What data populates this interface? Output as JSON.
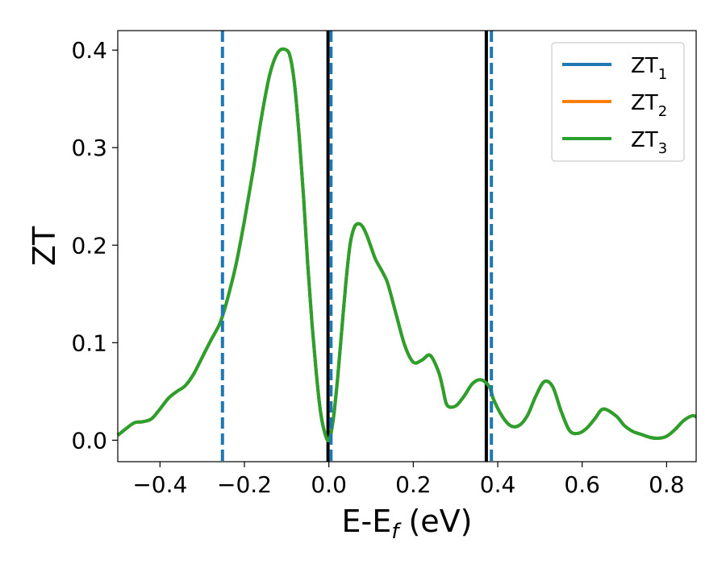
{
  "chart_data": {
    "type": "line",
    "xlabel": {
      "base": "E-E",
      "sub": "f",
      "suffix": " (eV)"
    },
    "ylabel": "ZT",
    "xlim": [
      -0.5,
      0.87
    ],
    "ylim": [
      -0.022,
      0.42
    ],
    "x_ticks": [
      -0.4,
      -0.2,
      0.0,
      0.2,
      0.4,
      0.6,
      0.8
    ],
    "x_tick_labels": [
      "−0.4",
      "−0.2",
      "0.0",
      "0.2",
      "0.4",
      "0.6",
      "0.8"
    ],
    "y_ticks": [
      0.0,
      0.1,
      0.2,
      0.3,
      0.4
    ],
    "y_tick_labels": [
      "0.0",
      "0.1",
      "0.2",
      "0.3",
      "0.4"
    ],
    "grid": false,
    "legend_position": "top-right",
    "series": [
      {
        "name": "ZT",
        "sub": "1",
        "color": "#1f77b4"
      },
      {
        "name": "ZT",
        "sub": "2",
        "color": "#ff7f0e"
      },
      {
        "name": "ZT",
        "sub": "3",
        "color": "#2ca02c"
      }
    ],
    "curve": {
      "x": [
        -0.5,
        -0.48,
        -0.46,
        -0.44,
        -0.42,
        -0.4,
        -0.38,
        -0.36,
        -0.34,
        -0.32,
        -0.3,
        -0.28,
        -0.26,
        -0.25,
        -0.24,
        -0.22,
        -0.2,
        -0.18,
        -0.16,
        -0.14,
        -0.12,
        -0.1,
        -0.09,
        -0.08,
        -0.07,
        -0.06,
        -0.05,
        -0.04,
        -0.03,
        -0.02,
        -0.01,
        0.0,
        0.01,
        0.02,
        0.03,
        0.04,
        0.05,
        0.06,
        0.07,
        0.08,
        0.09,
        0.1,
        0.11,
        0.12,
        0.13,
        0.14,
        0.16,
        0.18,
        0.2,
        0.22,
        0.24,
        0.26,
        0.27,
        0.28,
        0.3,
        0.32,
        0.34,
        0.36,
        0.38,
        0.39,
        0.41,
        0.43,
        0.45,
        0.47,
        0.49,
        0.51,
        0.53,
        0.55,
        0.57,
        0.59,
        0.61,
        0.63,
        0.65,
        0.68,
        0.7,
        0.72,
        0.74,
        0.76,
        0.78,
        0.8,
        0.82,
        0.84,
        0.86,
        0.87
      ],
      "y": [
        0.005,
        0.012,
        0.018,
        0.019,
        0.022,
        0.032,
        0.043,
        0.05,
        0.056,
        0.068,
        0.085,
        0.102,
        0.118,
        0.13,
        0.145,
        0.18,
        0.225,
        0.275,
        0.33,
        0.375,
        0.398,
        0.4,
        0.39,
        0.36,
        0.31,
        0.25,
        0.18,
        0.12,
        0.07,
        0.03,
        0.008,
        0.0,
        0.02,
        0.06,
        0.11,
        0.16,
        0.2,
        0.218,
        0.222,
        0.219,
        0.21,
        0.198,
        0.186,
        0.178,
        0.17,
        0.16,
        0.128,
        0.097,
        0.08,
        0.082,
        0.087,
        0.07,
        0.053,
        0.036,
        0.035,
        0.045,
        0.058,
        0.062,
        0.055,
        0.042,
        0.025,
        0.015,
        0.015,
        0.025,
        0.045,
        0.06,
        0.055,
        0.03,
        0.01,
        0.007,
        0.012,
        0.022,
        0.032,
        0.025,
        0.015,
        0.009,
        0.006,
        0.003,
        0.002,
        0.004,
        0.011,
        0.02,
        0.025,
        0.024
      ]
    },
    "vlines_dashed": {
      "x": [
        -0.252,
        0.005,
        0.385
      ],
      "color": "#1f77b4"
    },
    "vlines_solid": {
      "x": [
        -0.002,
        0.373
      ],
      "color": "#000000"
    }
  }
}
